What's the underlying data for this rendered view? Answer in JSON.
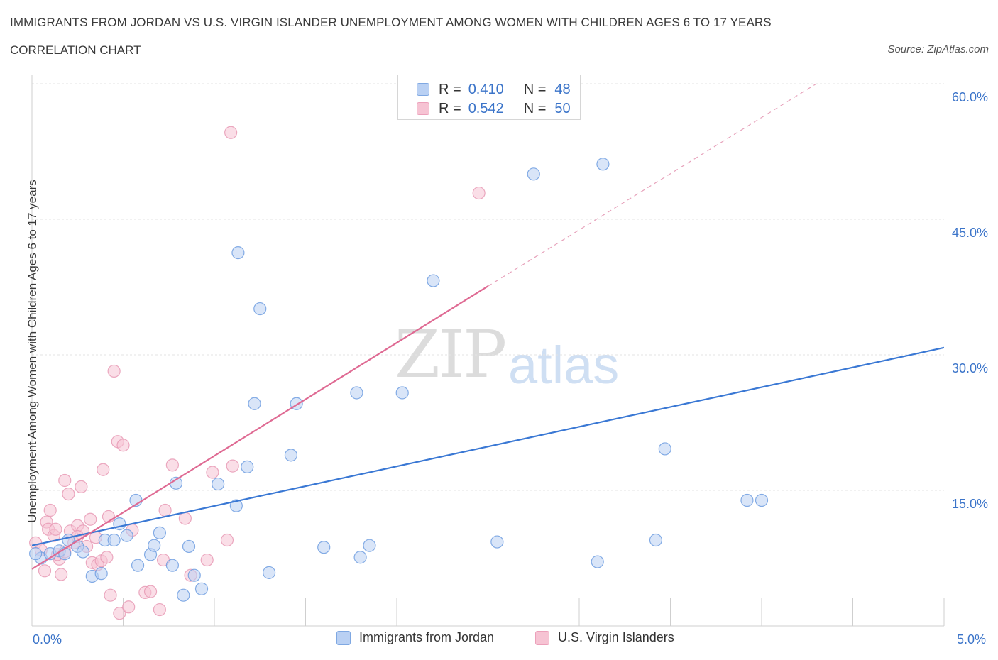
{
  "title": "IMMIGRANTS FROM JORDAN VS U.S. VIRGIN ISLANDER UNEMPLOYMENT AMONG WOMEN WITH CHILDREN AGES 6 TO 17 YEARS",
  "subtitle": "CORRELATION CHART",
  "source": "Source: ZipAtlas.com",
  "watermark": {
    "zip": "ZIP",
    "atlas": "atlas"
  },
  "legend_top": {
    "rows": [
      {
        "r_label": "R =",
        "r_value": "0.410",
        "n_label": "N =",
        "n_value": "48"
      },
      {
        "r_label": "R =",
        "r_value": "0.542",
        "n_label": "N =",
        "n_value": "50"
      }
    ]
  },
  "chart_data": {
    "type": "scatter",
    "title": "IMMIGRANTS FROM JORDAN VS U.S. VIRGIN ISLANDER UNEMPLOYMENT AMONG WOMEN WITH CHILDREN AGES 6 TO 17 YEARS",
    "xlabel": "",
    "ylabel": "Unemployment Among Women with Children Ages 6 to 17 years",
    "xlim": [
      0,
      5
    ],
    "ylim": [
      0,
      60
    ],
    "x_tick_labels": [
      "0.0%",
      "5.0%"
    ],
    "y_tick_labels": [
      "15.0%",
      "30.0%",
      "45.0%",
      "60.0%"
    ],
    "y_ticks": [
      15,
      30,
      45,
      60
    ],
    "colors": {
      "blue": "#3a78d4",
      "blue_fill": "#b9d0f3",
      "pink": "#df6a93",
      "pink_fill": "#f6c3d3"
    },
    "series": [
      {
        "name": "Immigrants from Jordan",
        "R": 0.41,
        "N": 48,
        "trend": {
          "x0": 0.0,
          "y0": 8.9,
          "x1": 5.0,
          "y1": 30.8
        },
        "points": [
          [
            0.05,
            7.5
          ],
          [
            0.1,
            8.0
          ],
          [
            0.15,
            8.3
          ],
          [
            0.18,
            8.0
          ],
          [
            0.2,
            9.5
          ],
          [
            0.25,
            8.8
          ],
          [
            0.28,
            8.2
          ],
          [
            0.33,
            5.5
          ],
          [
            0.38,
            5.8
          ],
          [
            0.4,
            9.5
          ],
          [
            0.45,
            9.5
          ],
          [
            0.48,
            11.3
          ],
          [
            0.52,
            10.0
          ],
          [
            0.57,
            13.9
          ],
          [
            0.58,
            6.7
          ],
          [
            0.65,
            7.9
          ],
          [
            0.67,
            8.9
          ],
          [
            0.7,
            10.3
          ],
          [
            0.77,
            6.7
          ],
          [
            0.79,
            15.8
          ],
          [
            0.83,
            3.4
          ],
          [
            0.86,
            8.8
          ],
          [
            0.89,
            5.6
          ],
          [
            0.93,
            4.1
          ],
          [
            1.02,
            15.7
          ],
          [
            1.12,
            13.3
          ],
          [
            1.13,
            41.3
          ],
          [
            1.18,
            17.6
          ],
          [
            1.22,
            24.6
          ],
          [
            1.25,
            35.1
          ],
          [
            1.3,
            5.9
          ],
          [
            1.42,
            18.9
          ],
          [
            1.45,
            24.6
          ],
          [
            1.6,
            8.7
          ],
          [
            1.78,
            25.8
          ],
          [
            1.8,
            7.6
          ],
          [
            1.85,
            8.9
          ],
          [
            2.03,
            25.8
          ],
          [
            2.2,
            38.2
          ],
          [
            2.55,
            9.3
          ],
          [
            2.75,
            50.0
          ],
          [
            3.1,
            7.1
          ],
          [
            3.13,
            51.1
          ],
          [
            3.42,
            9.5
          ],
          [
            3.47,
            19.6
          ],
          [
            3.92,
            13.9
          ],
          [
            4.0,
            13.9
          ],
          [
            0.02,
            8.0
          ]
        ]
      },
      {
        "name": "U.S. Virgin Islanders",
        "R": 0.542,
        "N": 50,
        "trend": {
          "x0": 0.0,
          "y0": 6.3,
          "x1": 2.5,
          "y1": 37.6
        },
        "trend_dashed": {
          "x0": 2.5,
          "y0": 37.6,
          "x1": 4.3,
          "y1": 60.0
        },
        "points": [
          [
            0.02,
            9.2
          ],
          [
            0.05,
            8.4
          ],
          [
            0.08,
            11.5
          ],
          [
            0.09,
            10.7
          ],
          [
            0.1,
            12.8
          ],
          [
            0.12,
            10.0
          ],
          [
            0.13,
            10.7
          ],
          [
            0.15,
            7.4
          ],
          [
            0.16,
            5.7
          ],
          [
            0.18,
            8.2
          ],
          [
            0.18,
            16.1
          ],
          [
            0.2,
            14.6
          ],
          [
            0.21,
            10.5
          ],
          [
            0.23,
            9.2
          ],
          [
            0.25,
            11.1
          ],
          [
            0.27,
            15.4
          ],
          [
            0.28,
            10.5
          ],
          [
            0.3,
            8.8
          ],
          [
            0.32,
            11.8
          ],
          [
            0.33,
            7.0
          ],
          [
            0.35,
            9.8
          ],
          [
            0.36,
            6.8
          ],
          [
            0.38,
            7.2
          ],
          [
            0.39,
            17.3
          ],
          [
            0.41,
            7.6
          ],
          [
            0.42,
            12.1
          ],
          [
            0.43,
            3.4
          ],
          [
            0.45,
            28.2
          ],
          [
            0.47,
            20.4
          ],
          [
            0.48,
            1.4
          ],
          [
            0.5,
            20.0
          ],
          [
            0.53,
            2.1
          ],
          [
            0.55,
            10.6
          ],
          [
            0.62,
            3.7
          ],
          [
            0.65,
            3.8
          ],
          [
            0.7,
            1.8
          ],
          [
            0.72,
            7.3
          ],
          [
            0.73,
            12.8
          ],
          [
            0.77,
            17.8
          ],
          [
            0.84,
            11.9
          ],
          [
            0.87,
            5.6
          ],
          [
            0.96,
            7.3
          ],
          [
            0.99,
            17.0
          ],
          [
            1.07,
            9.5
          ],
          [
            1.1,
            17.7
          ],
          [
            1.09,
            54.6
          ],
          [
            2.45,
            47.9
          ],
          [
            0.07,
            6.1
          ],
          [
            0.14,
            7.9
          ],
          [
            0.25,
            9.9
          ]
        ]
      }
    ],
    "legend": [
      "Immigrants from Jordan",
      "U.S. Virgin Islanders"
    ]
  }
}
